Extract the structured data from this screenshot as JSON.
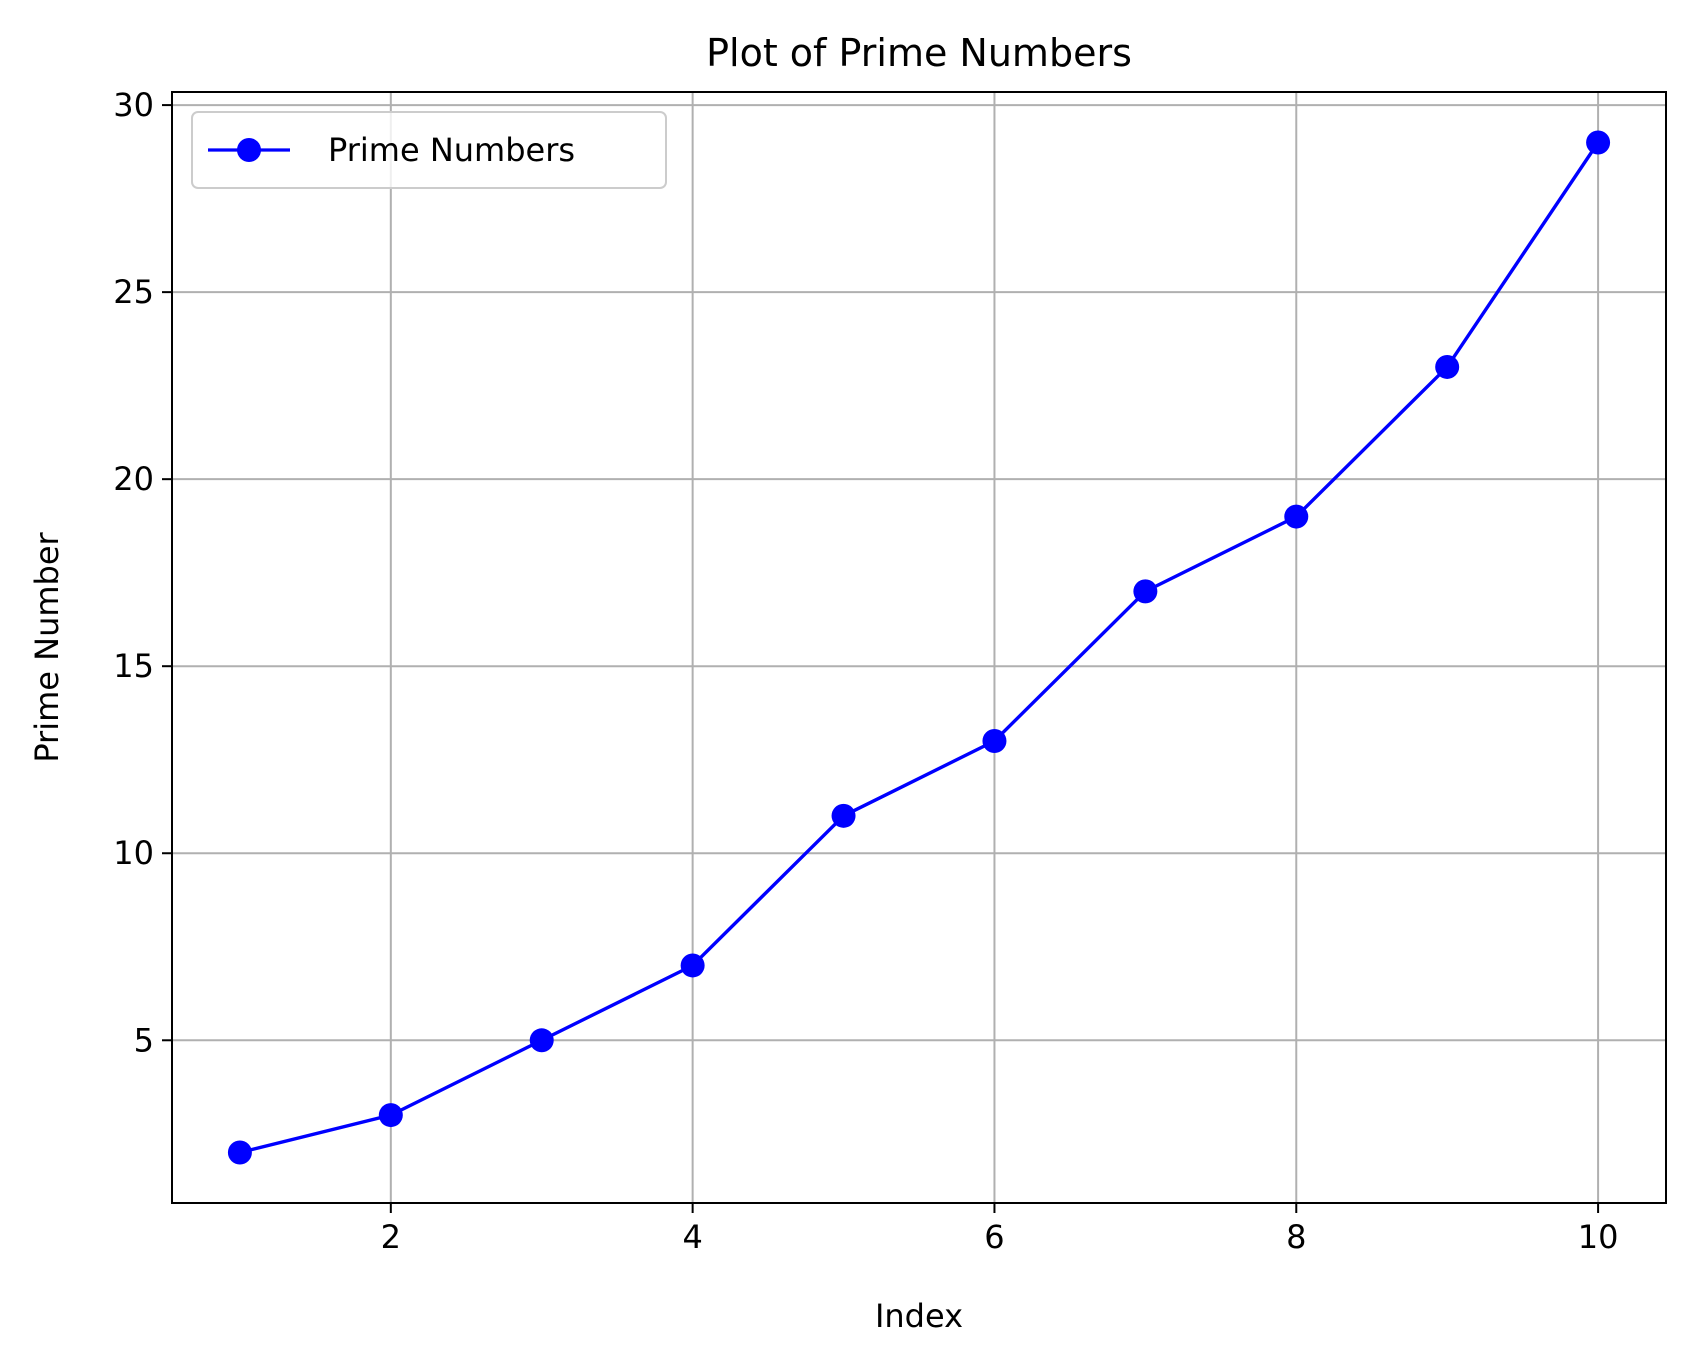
{
  "chart_data": {
    "type": "line",
    "title": "Plot of Prime Numbers",
    "xlabel": "Index",
    "ylabel": "Prime Number",
    "x": [
      1,
      2,
      3,
      4,
      5,
      6,
      7,
      8,
      9,
      10
    ],
    "series": [
      {
        "name": "Prime Numbers",
        "values": [
          2,
          3,
          5,
          7,
          11,
          13,
          17,
          19,
          23,
          29
        ],
        "color": "#0000ff",
        "marker": "circle"
      }
    ],
    "xticks": [
      2,
      4,
      6,
      8,
      10
    ],
    "yticks": [
      5,
      10,
      15,
      20,
      25,
      30
    ],
    "xlim": [
      0.55,
      10.45
    ],
    "ylim": [
      0.65,
      30.35
    ],
    "grid": true,
    "legend_position": "upper-left"
  }
}
